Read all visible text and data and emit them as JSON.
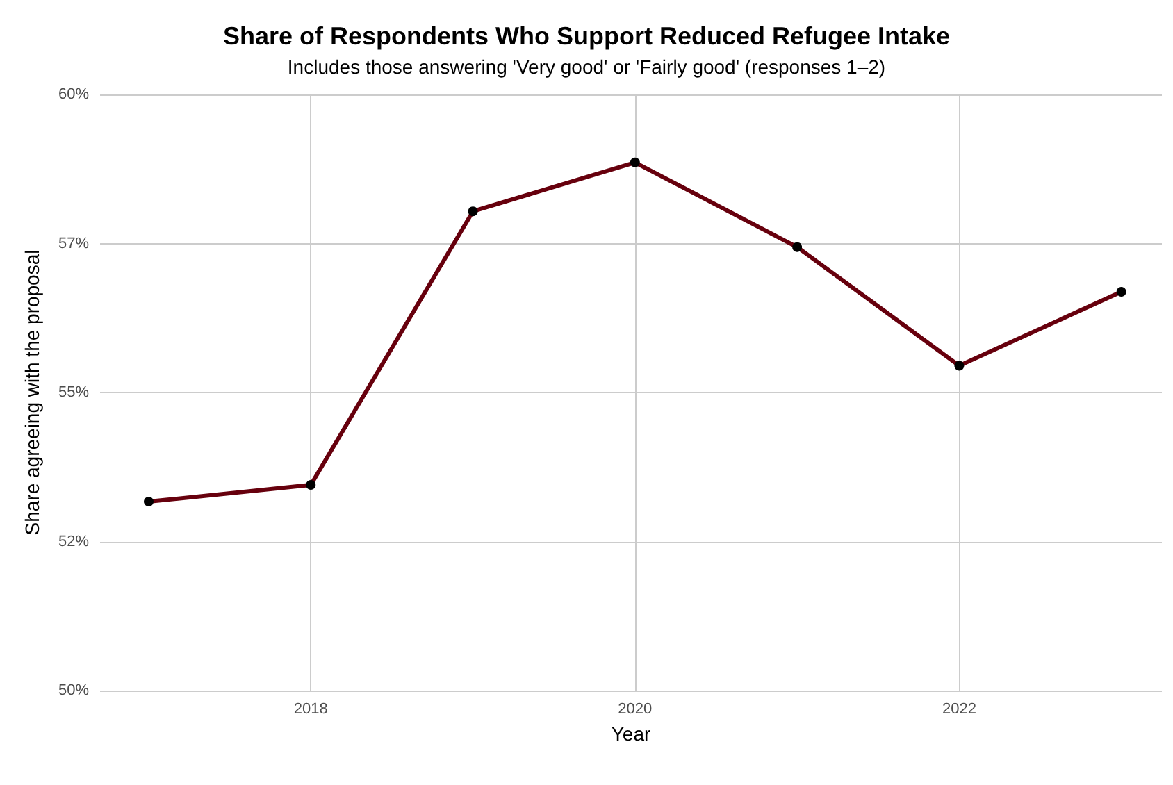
{
  "chart_data": {
    "type": "line",
    "title": "Share of Respondents Who Support Reduced Refugee Intake",
    "subtitle": "Includes those answering 'Very good' or 'Fairly good' (responses 1–2)",
    "xlabel": "Year",
    "ylabel": "Share agreeing with the proposal",
    "x": [
      2017,
      2018,
      2019,
      2020,
      2021,
      2022,
      2023
    ],
    "series": [
      {
        "color": "#67000d",
        "values": [
          53.17,
          53.45,
          58.04,
          58.86,
          57.44,
          55.45,
          56.69
        ]
      }
    ],
    "xlim": [
      2016.7,
      2023.25
    ],
    "xticks": [
      2018,
      2020,
      2022
    ],
    "ylim": [
      50,
      60
    ],
    "yticks": [
      {
        "value": 50,
        "label": "50%"
      },
      {
        "value": 52.5,
        "label": "52%"
      },
      {
        "value": 55,
        "label": "55%"
      },
      {
        "value": 57.5,
        "label": "57%"
      },
      {
        "value": 60,
        "label": "60%"
      }
    ],
    "grid": true,
    "marker": "circle",
    "line_style": "solid"
  }
}
